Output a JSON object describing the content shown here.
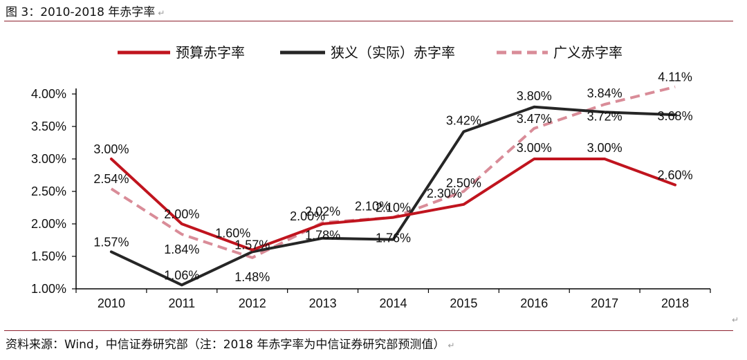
{
  "header": {
    "title": "图 3：2010-2018 年赤字率",
    "return_mark": "↵"
  },
  "footer": {
    "source": "资料来源：Wind，中信证券研究部（注：2018 年赤字率为中信证券研究部预测值）",
    "return_mark": "↵"
  },
  "chart_data": {
    "type": "line",
    "title": "",
    "xlabel": "",
    "ylabel": "",
    "categories": [
      "2010",
      "2011",
      "2012",
      "2013",
      "2014",
      "2015",
      "2016",
      "2017",
      "2018"
    ],
    "ylim": [
      1.0,
      4.0
    ],
    "yticks": [
      "1.00%",
      "1.50%",
      "2.00%",
      "2.50%",
      "3.00%",
      "3.50%",
      "4.00%"
    ],
    "grid": false,
    "legend_position": "top",
    "series": [
      {
        "name": "预算赤字率",
        "color": "#c0141e",
        "dash": "solid",
        "values": [
          3.0,
          2.0,
          1.6,
          2.0,
          2.1,
          2.3,
          3.0,
          3.0,
          2.6
        ],
        "labels": [
          "3.00%",
          "2.00%",
          "1.60%",
          "2.00%",
          "2.10%",
          "2.30%",
          "3.00%",
          "3.00%",
          "2.60%"
        ]
      },
      {
        "name": "狭义（实际）赤字率",
        "color": "#262626",
        "dash": "solid",
        "values": [
          1.57,
          1.06,
          1.57,
          1.78,
          1.76,
          3.42,
          3.8,
          3.72,
          3.68
        ],
        "labels": [
          "1.57%",
          "1.06%",
          "1.57%",
          "1.78%",
          "1.76%",
          "3.42%",
          "3.80%",
          "3.72%",
          "3.68%"
        ]
      },
      {
        "name": "广义赤字率",
        "color": "#d98c98",
        "dash": "dashed",
        "values": [
          2.54,
          1.84,
          1.48,
          2.02,
          2.1,
          2.5,
          3.47,
          3.84,
          4.11
        ],
        "labels": [
          "2.54%",
          "1.84%",
          "1.48%",
          "2.02%",
          "2.10%",
          "2.50%",
          "3.47%",
          "3.84%",
          "4.11%"
        ]
      }
    ]
  }
}
